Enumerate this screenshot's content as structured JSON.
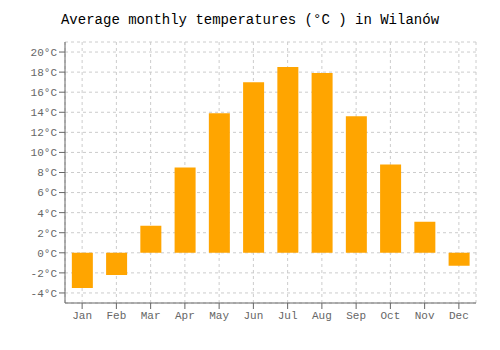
{
  "chart_data": {
    "type": "bar",
    "title": "Average monthly temperatures (°C ) in Wilanów",
    "categories": [
      "Jan",
      "Feb",
      "Mar",
      "Apr",
      "May",
      "Jun",
      "Jul",
      "Aug",
      "Sep",
      "Oct",
      "Nov",
      "Dec"
    ],
    "values": [
      -3.5,
      -2.2,
      2.7,
      8.5,
      13.9,
      17.0,
      18.5,
      17.9,
      13.6,
      8.8,
      3.1,
      -1.3
    ],
    "color": "#FFA500",
    "ylim": [
      -5,
      21
    ],
    "yticks": [
      {
        "value": 20,
        "label": "20°C"
      },
      {
        "value": 18,
        "label": "18°C"
      },
      {
        "value": 16,
        "label": "16°C"
      },
      {
        "value": 14,
        "label": "14°C"
      },
      {
        "value": 12,
        "label": "12°C"
      },
      {
        "value": 10,
        "label": "10°C"
      },
      {
        "value": 8,
        "label": "8°C"
      },
      {
        "value": 6,
        "label": "6°C"
      },
      {
        "value": 4,
        "label": "4°C"
      },
      {
        "value": 2,
        "label": "2°C"
      },
      {
        "value": 0,
        "label": "0°C"
      },
      {
        "value": -2,
        "label": "-2°C"
      },
      {
        "value": -4,
        "label": "-4°C"
      }
    ],
    "grid": true
  }
}
